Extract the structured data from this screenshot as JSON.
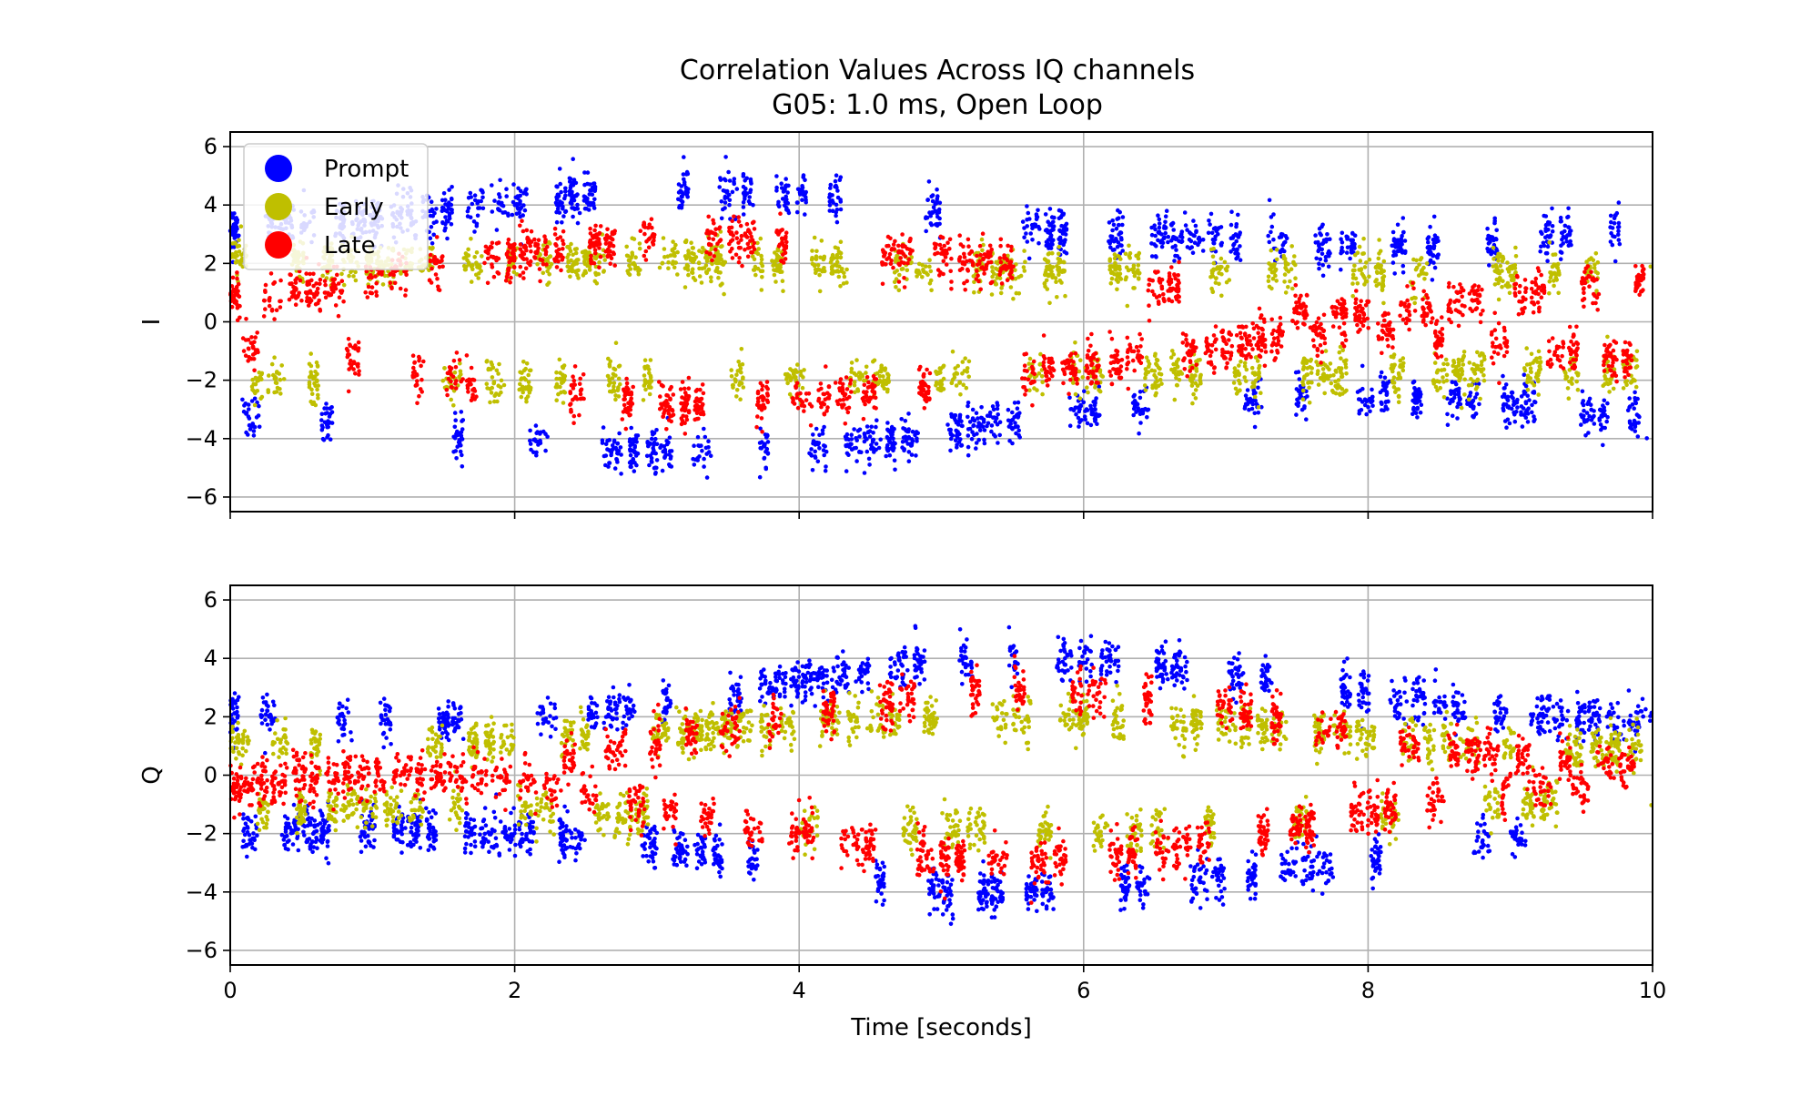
{
  "title_line1": "Correlation Values Across IQ channels",
  "title_line2": "G05: 1.0 ms, Open Loop",
  "colors": {
    "Prompt": "#0000ff",
    "Early": "#bfbf00",
    "Late": "#ff0000",
    "grid": "#b0b0b0"
  },
  "chart_data": [
    {
      "type": "scatter",
      "panel": "I",
      "title": "",
      "xlabel": "",
      "ylabel": "I",
      "xlim": [
        0,
        10
      ],
      "ylim": [
        -6.5,
        6.5
      ],
      "xticks": [
        0,
        2,
        4,
        6,
        8,
        10
      ],
      "yticks": [
        -6,
        -4,
        -2,
        0,
        2,
        4,
        6
      ],
      "grid": true,
      "legend": "upper-left",
      "series": [
        {
          "name": "Prompt",
          "x": [
            0,
            0.5,
            1,
            1.5,
            2,
            2.5,
            3,
            3.5,
            4,
            4.5,
            5,
            5.5,
            6,
            6.5,
            7,
            7.5,
            8,
            8.5,
            9,
            9.5,
            10
          ],
          "y": [
            3.2,
            3.4,
            3.5,
            3.8,
            4.0,
            4.3,
            4.5,
            4.5,
            4.3,
            4.2,
            3.8,
            3.3,
            3.0,
            2.9,
            2.8,
            2.6,
            2.5,
            2.6,
            2.8,
            3.1,
            3.3
          ]
        },
        {
          "name": "Early",
          "x": [
            0,
            0.5,
            1,
            1.5,
            2,
            2.5,
            3,
            3.5,
            4,
            4.5,
            5,
            5.5,
            6,
            6.5,
            7,
            7.5,
            8,
            8.5,
            9,
            9.5,
            10
          ],
          "y": [
            2.2,
            2.1,
            2.0,
            2.0,
            2.1,
            2.1,
            2.1,
            2.1,
            2.0,
            2.0,
            1.9,
            1.8,
            1.8,
            1.8,
            1.8,
            1.8,
            1.7,
            1.7,
            1.7,
            1.8,
            1.8
          ]
        },
        {
          "name": "Late",
          "x": [
            0,
            0.5,
            1,
            1.5,
            2,
            2.5,
            3,
            3.5,
            4,
            4.5,
            5,
            5.5,
            6,
            6.5,
            7,
            7.5,
            8,
            8.5,
            9,
            9.5,
            10
          ],
          "y": [
            0.8,
            1.0,
            1.4,
            2.0,
            2.3,
            2.6,
            2.8,
            2.9,
            2.7,
            2.4,
            2.2,
            1.9,
            1.5,
            1.2,
            0.8,
            0.4,
            0.2,
            0.5,
            0.8,
            1.1,
            1.4
          ]
        }
      ]
    },
    {
      "type": "scatter",
      "panel": "Q",
      "title": "",
      "xlabel": "Time [seconds]",
      "ylabel": "Q",
      "xlim": [
        0,
        10
      ],
      "ylim": [
        -6.5,
        6.5
      ],
      "xticks": [
        0,
        2,
        4,
        6,
        8,
        10
      ],
      "yticks": [
        -6,
        -4,
        -2,
        0,
        2,
        4,
        6
      ],
      "grid": true,
      "series": [
        {
          "name": "Prompt",
          "x": [
            0,
            0.5,
            1,
            1.5,
            2,
            2.5,
            3,
            3.5,
            4,
            4.5,
            5,
            5.5,
            6,
            6.5,
            7,
            7.5,
            8,
            8.5,
            9,
            9.5,
            10
          ],
          "y": [
            2.0,
            1.9,
            1.9,
            1.9,
            2.0,
            2.2,
            2.4,
            2.8,
            3.2,
            3.6,
            4.0,
            4.0,
            4.0,
            3.8,
            3.5,
            3.2,
            2.8,
            2.4,
            2.1,
            1.9,
            1.8
          ]
        },
        {
          "name": "Early",
          "x": [
            0,
            0.5,
            1,
            1.5,
            2,
            2.5,
            3,
            3.5,
            4,
            4.5,
            5,
            5.5,
            6,
            6.5,
            7,
            7.5,
            8,
            8.5,
            9,
            9.5,
            10
          ],
          "y": [
            1.2,
            1.1,
            1.1,
            1.1,
            1.2,
            1.3,
            1.4,
            1.6,
            1.8,
            1.9,
            1.9,
            1.9,
            1.9,
            1.8,
            1.7,
            1.6,
            1.4,
            1.2,
            1.0,
            0.9,
            0.9
          ]
        },
        {
          "name": "Late",
          "x": [
            0,
            0.5,
            1,
            1.5,
            2,
            2.5,
            3,
            3.5,
            4,
            4.5,
            5,
            5.5,
            6,
            6.5,
            7,
            7.5,
            8,
            8.5,
            9,
            9.5,
            10
          ],
          "y": [
            0.4,
            0.2,
            0.0,
            0.0,
            0.1,
            0.6,
            1.1,
            1.6,
            2.0,
            2.4,
            2.8,
            3.0,
            2.9,
            2.6,
            2.3,
            1.8,
            1.3,
            0.9,
            0.6,
            0.4,
            0.3
          ]
        }
      ]
    }
  ]
}
